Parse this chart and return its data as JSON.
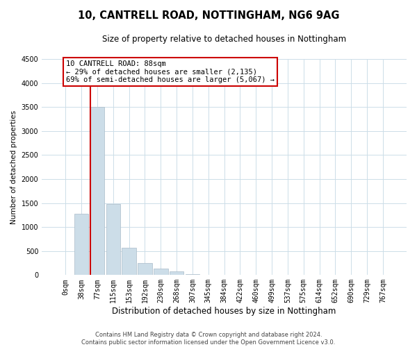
{
  "title": "10, CANTRELL ROAD, NOTTINGHAM, NG6 9AG",
  "subtitle": "Size of property relative to detached houses in Nottingham",
  "xlabel": "Distribution of detached houses by size in Nottingham",
  "ylabel": "Number of detached properties",
  "bar_labels": [
    "0sqm",
    "38sqm",
    "77sqm",
    "115sqm",
    "153sqm",
    "192sqm",
    "230sqm",
    "268sqm",
    "307sqm",
    "345sqm",
    "384sqm",
    "422sqm",
    "460sqm",
    "499sqm",
    "537sqm",
    "575sqm",
    "614sqm",
    "652sqm",
    "690sqm",
    "729sqm",
    "767sqm"
  ],
  "bar_values": [
    0,
    1270,
    3500,
    1480,
    575,
    245,
    130,
    75,
    20,
    5,
    2,
    1,
    1,
    0,
    0,
    0,
    0,
    0,
    0,
    0,
    0
  ],
  "bar_color": "#ccdde8",
  "bar_edge_color": "#aabbc8",
  "vline_color": "#cc0000",
  "vline_x_index": 2,
  "ylim": [
    0,
    4500
  ],
  "yticks": [
    0,
    500,
    1000,
    1500,
    2000,
    2500,
    3000,
    3500,
    4000,
    4500
  ],
  "annotation_line1": "10 CANTRELL ROAD: 88sqm",
  "annotation_line2": "← 29% of detached houses are smaller (2,135)",
  "annotation_line3": "69% of semi-detached houses are larger (5,067) →",
  "footnote": "Contains HM Land Registry data © Crown copyright and database right 2024.\nContains public sector information licensed under the Open Government Licence v3.0.",
  "bg_color": "#ffffff",
  "grid_color": "#ccdde8",
  "title_fontsize": 10.5,
  "subtitle_fontsize": 8.5,
  "ylabel_fontsize": 7.5,
  "xlabel_fontsize": 8.5,
  "tick_fontsize": 7,
  "annot_fontsize": 7.5,
  "footnote_fontsize": 6
}
